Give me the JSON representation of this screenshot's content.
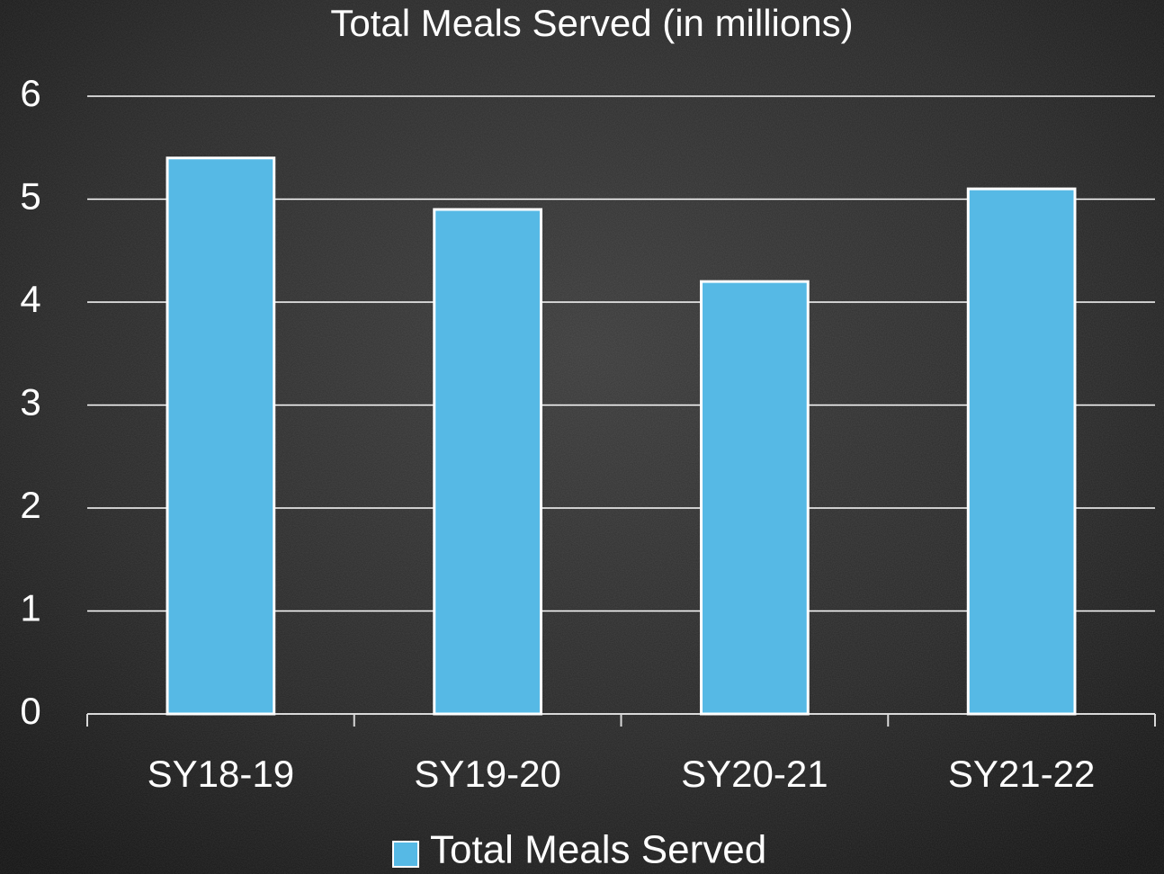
{
  "chart_data": {
    "type": "bar",
    "title": "Total Meals Served (in millions)",
    "categories": [
      "SY18-19",
      "SY19-20",
      "SY20-21",
      "SY21-22"
    ],
    "series": [
      {
        "name": "Total Meals Served",
        "color": "#56b9e5",
        "values": [
          5.4,
          4.9,
          4.2,
          5.1
        ]
      }
    ],
    "ylim": [
      0,
      6
    ],
    "yticks": [
      0,
      1,
      2,
      3,
      4,
      5,
      6
    ],
    "grid": true,
    "legend": "bottom"
  }
}
